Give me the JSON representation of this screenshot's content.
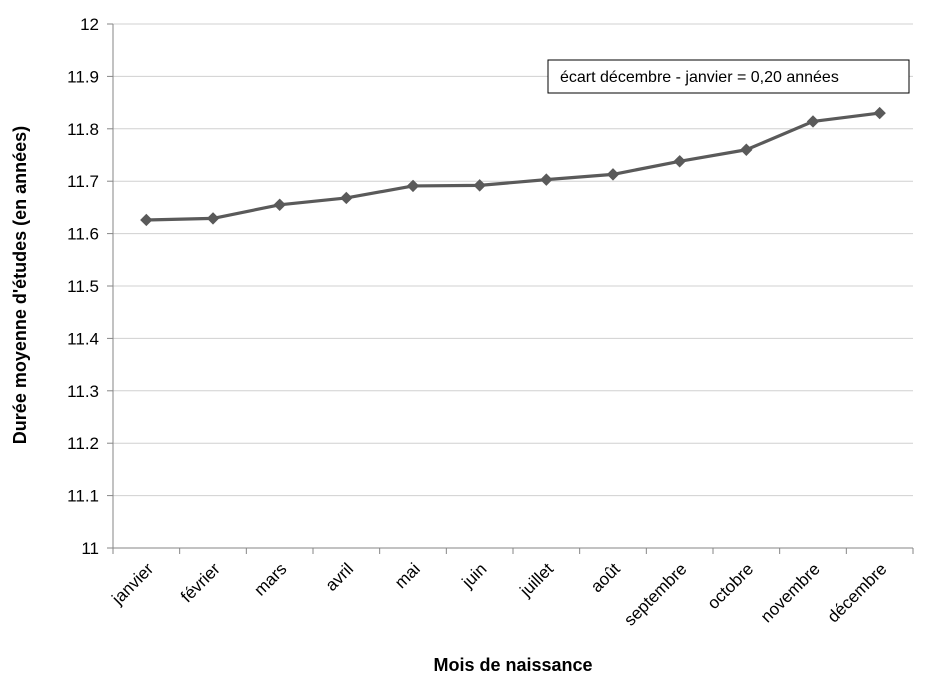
{
  "chart_data": {
    "type": "line",
    "title": "",
    "xlabel": "Mois de naissance",
    "ylabel": "Durée moyenne d'études (en années)",
    "categories": [
      "janvier",
      "février",
      "mars",
      "avril",
      "mai",
      "juin",
      "juillet",
      "août",
      "septembre",
      "octobre",
      "novembre",
      "décembre"
    ],
    "series": [
      {
        "values": [
          11.626,
          11.629,
          11.655,
          11.668,
          11.691,
          11.692,
          11.703,
          11.713,
          11.738,
          11.76,
          11.814,
          11.83
        ],
        "color": "#5a5a5a",
        "marker": "diamond"
      }
    ],
    "ylim": [
      11,
      12
    ],
    "yticks": [
      "11",
      "11.1",
      "11.2",
      "11.3",
      "11.4",
      "11.5",
      "11.6",
      "11.7",
      "11.8",
      "11.9",
      "12"
    ],
    "grid": true,
    "gridlines": "horizontal",
    "legend": "none",
    "annotation": "écart décembre - janvier = 0,20 années",
    "annotation_position": "top-right"
  }
}
